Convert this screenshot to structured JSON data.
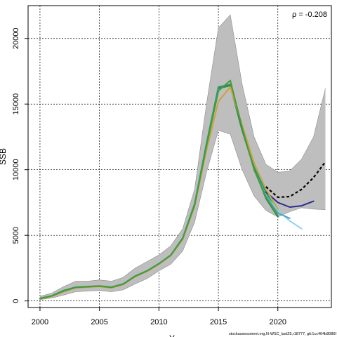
{
  "chart_data": {
    "type": "line",
    "title": "",
    "xlabel": "Y",
    "ylabel": "SSB",
    "xlim": [
      1999,
      2024.5
    ],
    "ylim": [
      -500,
      22500
    ],
    "xticks": [
      2000,
      2005,
      2010,
      2015,
      2020
    ],
    "yticks": [
      0,
      5000,
      10000,
      15000,
      20000
    ],
    "grid": true,
    "annotation": "ρ = -0.208",
    "watermark": "stockassessment.org,N-WSC_last25,r18777, git:1cc464b8086f",
    "colors": {
      "band": "#bebebe",
      "band_edge": "#8c8c8c",
      "grid": "#000000"
    },
    "confidence_band": {
      "x": [
        2000,
        2001,
        2002,
        2003,
        2004,
        2005,
        2006,
        2007,
        2008,
        2009,
        2010,
        2011,
        2012,
        2013,
        2014,
        2015,
        2016,
        2017,
        2018,
        2019,
        2020,
        2021,
        2022,
        2023,
        2024
      ],
      "upper": [
        350,
        600,
        1100,
        1500,
        1500,
        1600,
        1500,
        1800,
        2500,
        3000,
        3500,
        4200,
        5500,
        8500,
        15000,
        20800,
        21800,
        16500,
        12500,
        10400,
        9800,
        9900,
        10800,
        12500,
        16200
      ],
      "lower": [
        100,
        220,
        450,
        700,
        750,
        800,
        700,
        850,
        1300,
        1700,
        2300,
        2800,
        3800,
        6000,
        9800,
        13000,
        12700,
        10000,
        8000,
        6900,
        6400,
        6800,
        7100,
        7000,
        6950
      ]
    },
    "series": [
      {
        "color": "#1a9e77",
        "x": [
          2000,
          2001,
          2002,
          2003,
          2004,
          2005,
          2006,
          2007,
          2008,
          2009,
          2010,
          2011,
          2012,
          2013,
          2014,
          2015,
          2016,
          2017,
          2018,
          2019,
          2020
        ],
        "values": [
          200,
          400,
          800,
          1050,
          1100,
          1150,
          1050,
          1300,
          1900,
          2300,
          2850,
          3500,
          4800,
          7400,
          12000,
          16300,
          16500,
          13000,
          10200,
          8300,
          6700
        ]
      },
      {
        "color": "#2b2d8f",
        "x": [
          2019,
          2020,
          2021,
          2022,
          2023
        ],
        "values": [
          8300,
          7500,
          7150,
          7250,
          7600
        ]
      },
      {
        "color": "#8ed3ec",
        "x": [
          2019,
          2020,
          2021,
          2022
        ],
        "values": [
          8000,
          6900,
          6100,
          5500
        ]
      },
      {
        "color": "#4aa7c9",
        "x": [
          2018,
          2019,
          2020,
          2021
        ],
        "values": [
          10100,
          8000,
          6700,
          6300
        ]
      },
      {
        "color": "#2f8a4a",
        "x": [
          2015,
          2016,
          2017,
          2018,
          2019,
          2020
        ],
        "values": [
          16200,
          16400,
          13000,
          10100,
          7800,
          6400
        ]
      },
      {
        "color": "#c9a43b",
        "x": [
          2000,
          2001,
          2002,
          2003,
          2004,
          2005,
          2006,
          2007,
          2008,
          2009,
          2010,
          2011,
          2012,
          2013,
          2014,
          2015,
          2016,
          2017,
          2018,
          2019,
          2020
        ],
        "values": [
          150,
          350,
          700,
          1000,
          1050,
          1100,
          1000,
          1250,
          1850,
          2250,
          2800,
          3450,
          4700,
          7200,
          11500,
          15200,
          16300,
          13400,
          10500,
          8500,
          7000
        ]
      },
      {
        "color": "#4a9a3c",
        "x": [
          2000,
          2001,
          2002,
          2003,
          2004,
          2005,
          2006,
          2007,
          2008,
          2009,
          2010,
          2011,
          2012,
          2013,
          2014,
          2015,
          2016,
          2017,
          2018,
          2019,
          2020
        ],
        "values": [
          180,
          380,
          760,
          1030,
          1080,
          1130,
          1030,
          1280,
          1880,
          2280,
          2830,
          3480,
          4750,
          7300,
          11800,
          16000,
          16800,
          13200,
          10000,
          7900,
          6500
        ]
      }
    ],
    "forecast": {
      "color": "#000000",
      "x": [
        2019,
        2020,
        2021,
        2022,
        2023,
        2024
      ],
      "values": [
        8700,
        7900,
        7950,
        8500,
        9400,
        10600
      ]
    }
  }
}
